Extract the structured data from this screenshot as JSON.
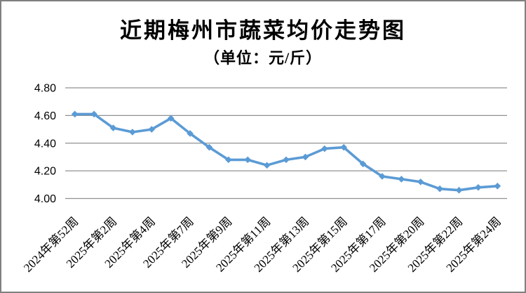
{
  "header": {
    "title": "近期梅州市蔬菜均价走势图",
    "subtitle": "（单位：元/斤）"
  },
  "chart_data": {
    "type": "line",
    "title": "近期梅州市蔬菜均价走势图",
    "unit_label": "（单位：元/斤）",
    "x_tick_labels": [
      "2024年第52周",
      "2025年第2周",
      "2025年第4周",
      "2025年第7周",
      "2025年第9周",
      "2025年第11周",
      "2025年第13周",
      "2025年第15周",
      "2025年第17周",
      "2025年第20周",
      "2025年第22周",
      "2025年第24周"
    ],
    "x_label_interval": 2,
    "values": [
      4.61,
      4.61,
      4.51,
      4.48,
      4.5,
      4.58,
      4.47,
      4.37,
      4.28,
      4.28,
      4.24,
      4.28,
      4.3,
      4.36,
      4.37,
      4.25,
      4.16,
      4.14,
      4.12,
      4.07,
      4.06,
      4.08,
      4.09
    ],
    "y_ticks": [
      4.0,
      4.2,
      4.4,
      4.6,
      4.8
    ],
    "ylim": [
      4.0,
      4.8
    ],
    "grid": true,
    "legend": "none",
    "marker": "diamond",
    "colors": {
      "series": "#5B9BD5",
      "gridline": "#909090",
      "frame_border": "#808080",
      "text": "#000000"
    }
  }
}
